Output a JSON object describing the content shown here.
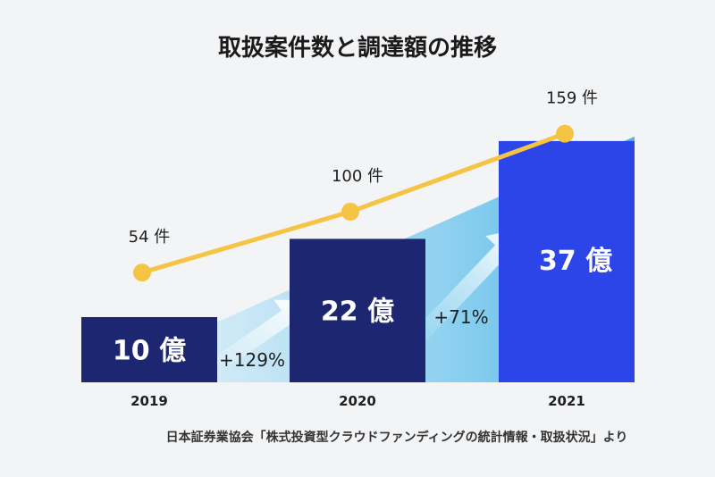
{
  "title": "取扱案件数と調達額の推移",
  "source": "日本証券業協会「株式投資型クラウドファンディングの統計情報・取扱状況」より",
  "colors": {
    "bar_2019": "#1d2670",
    "bar_2020": "#1d2670",
    "bar_2021": "#2c45e8",
    "line": "#f6c444",
    "gradient_start": "#cfe9f7",
    "gradient_end": "#4fb8e8",
    "arrow": "#ffffff"
  },
  "chart_data": {
    "type": "bar",
    "categories": [
      "2019",
      "2020",
      "2021"
    ],
    "series": [
      {
        "type": "bar",
        "values": [
          10,
          22,
          37
        ],
        "labels": [
          "10 億",
          "22 億",
          "37 億"
        ]
      },
      {
        "type": "line",
        "values": [
          54,
          100,
          159
        ],
        "labels": [
          "54 件",
          "100 件",
          "159 件"
        ]
      }
    ],
    "growth_labels": [
      "+129%",
      "+71%"
    ]
  }
}
